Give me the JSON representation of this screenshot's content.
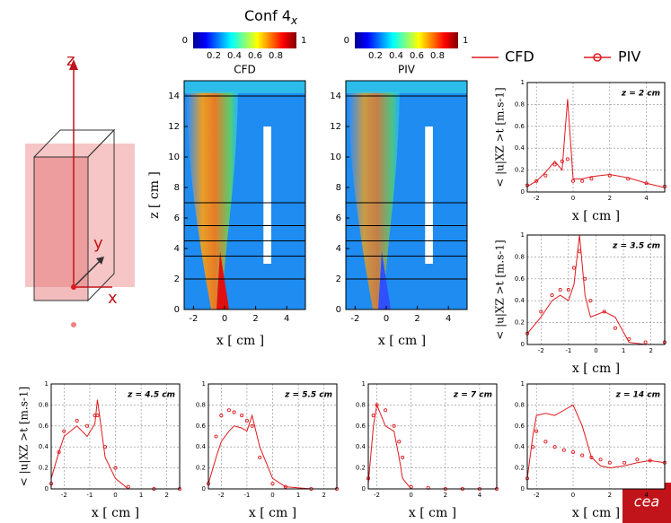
{
  "title": "Conf 4",
  "title_sub": "x",
  "diagram": {
    "axes": [
      "z",
      "y",
      "x"
    ]
  },
  "maps": {
    "panels": [
      "CFD",
      "PIV"
    ],
    "colorbar": {
      "range": [
        0,
        1
      ],
      "ticks": [
        0.2,
        0.4,
        0.6,
        0.8
      ]
    },
    "xlabel": "x [ cm ]",
    "ylabel": "z [ cm ]",
    "xlim": [
      -2.6,
      5.2
    ],
    "ylim": [
      0,
      15
    ],
    "xticks": [
      -2,
      0,
      2,
      4
    ],
    "yticks": [
      0,
      2,
      4,
      6,
      8,
      10,
      12,
      14
    ],
    "lines": [
      2,
      3.5,
      4.5,
      5.5,
      7,
      14
    ]
  },
  "logo": "cea",
  "chart_data": [
    {
      "type": "line",
      "annotation": "z = 2 cm",
      "xlabel": "x [ cm ]",
      "ylabel": "< |u|XZ >t  [m.s-1]",
      "x": [
        -2.5,
        -2,
        -1.5,
        -1,
        -0.6,
        -0.3,
        0,
        0.5,
        1,
        2,
        3,
        4,
        5
      ],
      "series": [
        {
          "name": "CFD",
          "color": "#e0191e",
          "values": [
            0.05,
            0.1,
            0.18,
            0.28,
            0.2,
            0.85,
            0.12,
            0.12,
            0.14,
            0.16,
            0.13,
            0.08,
            0.04
          ]
        },
        {
          "name": "PIV",
          "color": "#e0191e",
          "values": [
            0.06,
            0.1,
            0.15,
            0.25,
            0.28,
            0.3,
            0.1,
            0.1,
            0.12,
            0.15,
            0.12,
            0.08,
            0.05
          ]
        }
      ],
      "xlim": [
        -2.5,
        5
      ],
      "ylim": [
        0,
        1
      ],
      "xticks": [
        -2,
        0,
        2,
        4
      ],
      "yticks": [
        0,
        0.2,
        0.4,
        0.6,
        0.8,
        1
      ]
    },
    {
      "type": "line",
      "annotation": "z = 3.5 cm",
      "xlabel": "x [ cm ]",
      "ylabel": "< |u|XZ >t  [m.s-1]",
      "x": [
        -2.5,
        -2,
        -1.6,
        -1.3,
        -1,
        -0.8,
        -0.6,
        -0.4,
        -0.2,
        0.3,
        0.7,
        1.2,
        1.8,
        2.5
      ],
      "series": [
        {
          "name": "CFD",
          "color": "#e0191e",
          "values": [
            0.1,
            0.25,
            0.4,
            0.45,
            0.4,
            0.55,
            1.0,
            0.45,
            0.25,
            0.3,
            0.25,
            0.02,
            0,
            0
          ]
        },
        {
          "name": "PIV",
          "color": "#e0191e",
          "values": [
            0.1,
            0.3,
            0.45,
            0.5,
            0.5,
            0.7,
            0.85,
            0.6,
            0.4,
            0.3,
            0.15,
            0.05,
            0.02,
            0.02
          ]
        }
      ],
      "xlim": [
        -2.5,
        2.5
      ],
      "ylim": [
        0,
        1
      ],
      "xticks": [
        -2,
        -1,
        0,
        1,
        2
      ],
      "yticks": [
        0,
        0.2,
        0.4,
        0.6,
        0.8,
        1
      ]
    },
    {
      "type": "line",
      "annotation": "z = 4.5 cm",
      "xlabel": "x [ cm ]",
      "ylabel": "< |u|XZ >t  [m.s-1]",
      "x": [
        -2.5,
        -2.2,
        -2,
        -1.5,
        -1.1,
        -0.8,
        -0.7,
        -0.4,
        0,
        0.5,
        1.5,
        2.5
      ],
      "series": [
        {
          "name": "CFD",
          "color": "#e0191e",
          "values": [
            0.1,
            0.35,
            0.5,
            0.6,
            0.5,
            0.62,
            0.85,
            0.3,
            0.1,
            0,
            0,
            0
          ]
        },
        {
          "name": "PIV",
          "color": "#e0191e",
          "values": [
            0.05,
            0.35,
            0.55,
            0.65,
            0.6,
            0.7,
            0.7,
            0.4,
            0.2,
            0.02,
            0,
            0
          ]
        }
      ],
      "xlim": [
        -2.5,
        2.5
      ],
      "ylim": [
        0,
        1
      ],
      "xticks": [
        -2,
        -1,
        0,
        1,
        2
      ],
      "yticks": [
        0,
        0.2,
        0.4,
        0.6,
        0.8,
        1
      ]
    },
    {
      "type": "line",
      "annotation": "z = 5.5 cm",
      "xlabel": "x [ cm ]",
      "x": [
        -2.5,
        -2.2,
        -2,
        -1.7,
        -1.5,
        -1.2,
        -1,
        -0.8,
        -0.5,
        0,
        0.5,
        1.5,
        2.5
      ],
      "series": [
        {
          "name": "CFD",
          "color": "#e0191e",
          "values": [
            0.05,
            0.3,
            0.45,
            0.55,
            0.6,
            0.58,
            0.55,
            0.7,
            0.4,
            0.1,
            0.02,
            0,
            0
          ]
        },
        {
          "name": "PIV",
          "color": "#e0191e",
          "values": [
            0.05,
            0.5,
            0.7,
            0.75,
            0.73,
            0.7,
            0.65,
            0.6,
            0.3,
            0.05,
            0.02,
            0,
            0
          ]
        }
      ],
      "xlim": [
        -2.5,
        2.5
      ],
      "ylim": [
        0,
        1
      ],
      "xticks": [
        -2,
        -1,
        0,
        1,
        2
      ],
      "yticks": [
        0,
        0.2,
        0.4,
        0.6,
        0.8,
        1
      ]
    },
    {
      "type": "line",
      "annotation": "z = 7 cm",
      "xlabel": "x [ cm ]",
      "x": [
        -2.5,
        -2.2,
        -2,
        -1.5,
        -1,
        -0.7,
        -0.5,
        0,
        1,
        2,
        3,
        4,
        5
      ],
      "series": [
        {
          "name": "CFD",
          "color": "#e0191e",
          "values": [
            0.05,
            0.6,
            0.8,
            0.6,
            0.55,
            0.3,
            0.1,
            0,
            0,
            0,
            0,
            0,
            0
          ]
        },
        {
          "name": "PIV",
          "color": "#e0191e",
          "values": [
            0.1,
            0.7,
            0.8,
            0.75,
            0.6,
            0.45,
            0.3,
            0.02,
            0.01,
            0,
            0,
            0,
            0
          ]
        }
      ],
      "xlim": [
        -2.5,
        5
      ],
      "ylim": [
        0,
        1
      ],
      "xticks": [
        -2,
        0,
        2,
        4
      ],
      "yticks": [
        0,
        0.2,
        0.4,
        0.6,
        0.8,
        1
      ]
    },
    {
      "type": "line",
      "annotation": "z = 14 cm",
      "xlabel": "x [ cm ]",
      "x": [
        -2.5,
        -2.2,
        -2,
        -1.5,
        -1,
        -0.5,
        0,
        0.5,
        1,
        1.5,
        2,
        2.8,
        3.5,
        4.2,
        5
      ],
      "series": [
        {
          "name": "CFD",
          "color": "#e0191e",
          "values": [
            0.1,
            0.5,
            0.7,
            0.72,
            0.7,
            0.75,
            0.8,
            0.6,
            0.3,
            0.22,
            0.2,
            0.22,
            0.25,
            0.27,
            0.25
          ]
        },
        {
          "name": "PIV",
          "color": "#e0191e",
          "values": [
            0.1,
            0.4,
            0.55,
            0.45,
            0.4,
            0.37,
            0.35,
            0.32,
            0.3,
            0.28,
            0.25,
            0.25,
            0.28,
            0.27,
            0.25
          ]
        }
      ],
      "xlim": [
        -2.5,
        5
      ],
      "ylim": [
        0,
        1
      ],
      "xticks": [
        -2,
        0,
        2,
        4
      ],
      "yticks": [
        0,
        0.2,
        0.4,
        0.6,
        0.8,
        1
      ]
    }
  ]
}
